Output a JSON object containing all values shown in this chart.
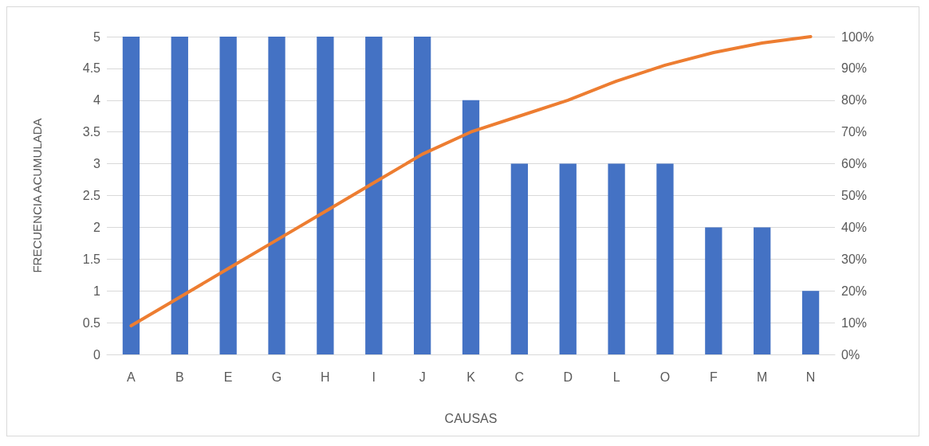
{
  "chart_data": {
    "type": "bar",
    "xlabel": "CAUSAS",
    "ylabel": "FRECUENCIA ACUMULADA",
    "categories": [
      "A",
      "B",
      "E",
      "G",
      "H",
      "I",
      "J",
      "K",
      "C",
      "D",
      "L",
      "O",
      "F",
      "M",
      "N"
    ],
    "series": [
      {
        "color": "#4472c4",
        "values": [
          5,
          5,
          5,
          5,
          5,
          5,
          5,
          4,
          3,
          3,
          3,
          3,
          2,
          2,
          1
        ]
      },
      {
        "type": "line",
        "axis": "y2",
        "color": "#ed7d31",
        "marker": "none",
        "values": [
          9,
          18,
          27,
          36,
          45,
          54,
          63,
          70,
          75,
          80,
          86,
          91,
          95,
          98,
          100
        ]
      }
    ],
    "ylim": [
      0,
      5
    ],
    "yticks": [
      0,
      0.5,
      1,
      1.5,
      2,
      2.5,
      3,
      3.5,
      4,
      4.5,
      5
    ],
    "y2lim": [
      0,
      100
    ],
    "y2ticks": [
      {
        "value": 0,
        "label": "0%"
      },
      {
        "value": 10,
        "label": "10%"
      },
      {
        "value": 20,
        "label": "20%"
      },
      {
        "value": 30,
        "label": "30%"
      },
      {
        "value": 40,
        "label": "40%"
      },
      {
        "value": 50,
        "label": "50%"
      },
      {
        "value": 60,
        "label": "60%"
      },
      {
        "value": 70,
        "label": "70%"
      },
      {
        "value": 80,
        "label": "80%"
      },
      {
        "value": 90,
        "label": "90%"
      },
      {
        "value": 100,
        "label": "100%"
      }
    ],
    "grid": "y"
  }
}
